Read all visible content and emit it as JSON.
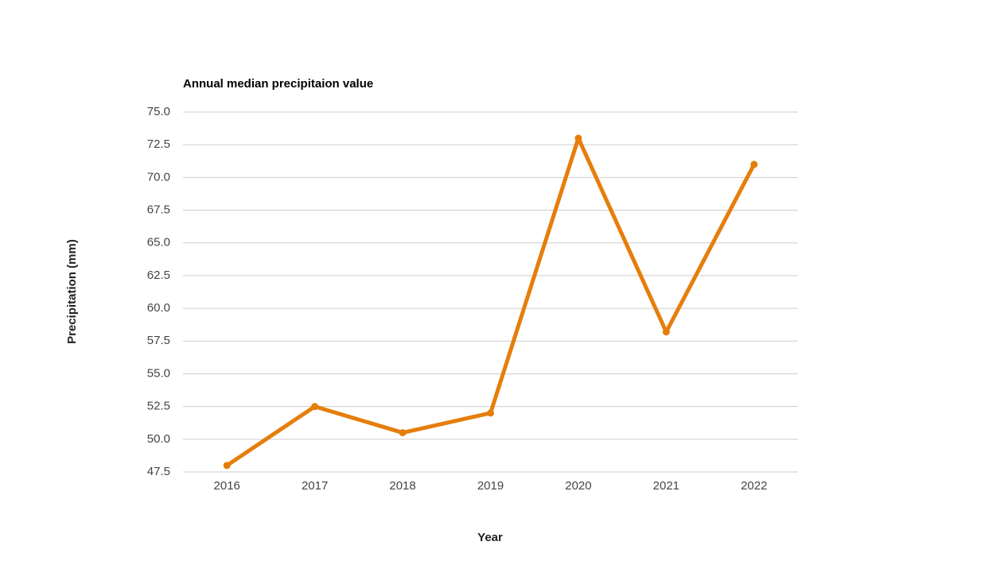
{
  "chart_data": {
    "type": "line",
    "title": "Annual median precipitaion value",
    "x_label": "Year",
    "y_label": "Precipitation (mm)",
    "categories": [
      "2016",
      "2017",
      "2018",
      "2019",
      "2020",
      "2021",
      "2022"
    ],
    "series": [
      {
        "name": "Precipitation (mm)",
        "color": "#e67e0b",
        "values": [
          48.0,
          52.5,
          50.5,
          52.0,
          73.0,
          58.2,
          71.0
        ]
      }
    ],
    "ylim": [
      47.5,
      75
    ],
    "yticks": [
      {
        "value": 47.5,
        "label": "47.5"
      },
      {
        "value": 50,
        "label": "50.0"
      },
      {
        "value": 52.5,
        "label": "52.5"
      },
      {
        "value": 55,
        "label": "55.0"
      },
      {
        "value": 57.5,
        "label": "57.5"
      },
      {
        "value": 60,
        "label": "60.0"
      },
      {
        "value": 62.5,
        "label": "62.5"
      },
      {
        "value": 65,
        "label": "65.0"
      },
      {
        "value": 67.5,
        "label": "67.5"
      },
      {
        "value": 70,
        "label": "70.0"
      },
      {
        "value": 72.5,
        "label": "72.5"
      },
      {
        "value": 75,
        "label": "75.0"
      }
    ],
    "grid": true
  }
}
